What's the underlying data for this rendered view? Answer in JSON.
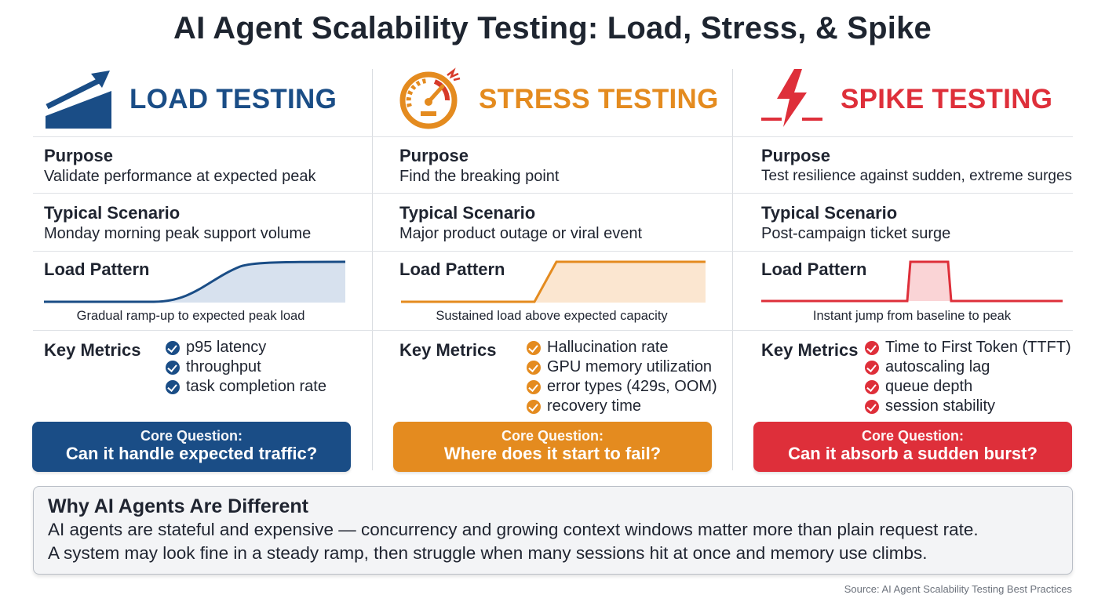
{
  "title": "AI Agent Scalability Testing: Load, Stress, & Spike",
  "labels": {
    "purpose": "Purpose",
    "scenario": "Typical Scenario",
    "pattern": "Load Pattern",
    "metrics": "Key Metrics"
  },
  "columns": [
    {
      "id": "load",
      "title": "LOAD TESTING",
      "color": "#1a4d86",
      "icon": "rising-arrow-icon",
      "purpose": "Validate performance at expected peak",
      "scenario": "Monday morning peak support volume",
      "pattern_caption": "Gradual ramp-up to expected peak load",
      "metrics": [
        "p95 latency",
        "throughput",
        "task completion rate"
      ],
      "question_label": "Core Question:",
      "question": "Can it handle expected traffic?"
    },
    {
      "id": "stress",
      "title": "STRESS TESTING",
      "color": "#e48b1f",
      "icon": "gauge-icon",
      "purpose": "Find the breaking point",
      "scenario": "Major product outage or viral event",
      "pattern_caption": "Sustained load above expected capacity",
      "metrics": [
        "Hallucination rate",
        "GPU memory utilization",
        "error types (429s, OOM)",
        "recovery time"
      ],
      "question_label": "Core Question:",
      "question": "Where does it start to fail?"
    },
    {
      "id": "spike",
      "title": "SPIKE TESTING",
      "color": "#de2f3a",
      "icon": "lightning-icon",
      "purpose": "Test resilience against sudden, extreme surges",
      "scenario": "Post-campaign ticket surge",
      "pattern_caption": "Instant jump from baseline to peak",
      "metrics": [
        "Time to First Token (TTFT)",
        "autoscaling lag",
        "queue depth",
        "session stability"
      ],
      "question_label": "Core Question:",
      "question": "Can it absorb a sudden burst?"
    }
  ],
  "why": {
    "title": "Why AI Agents Are Different",
    "line1": "AI agents are stateful and expensive — concurrency and growing context windows matter more than plain request rate.",
    "line2": "A system may look fine in a steady ramp, then struggle when many sessions hit at once and memory use climbs."
  },
  "source": "Source: AI Agent Scalability Testing Best Practices"
}
